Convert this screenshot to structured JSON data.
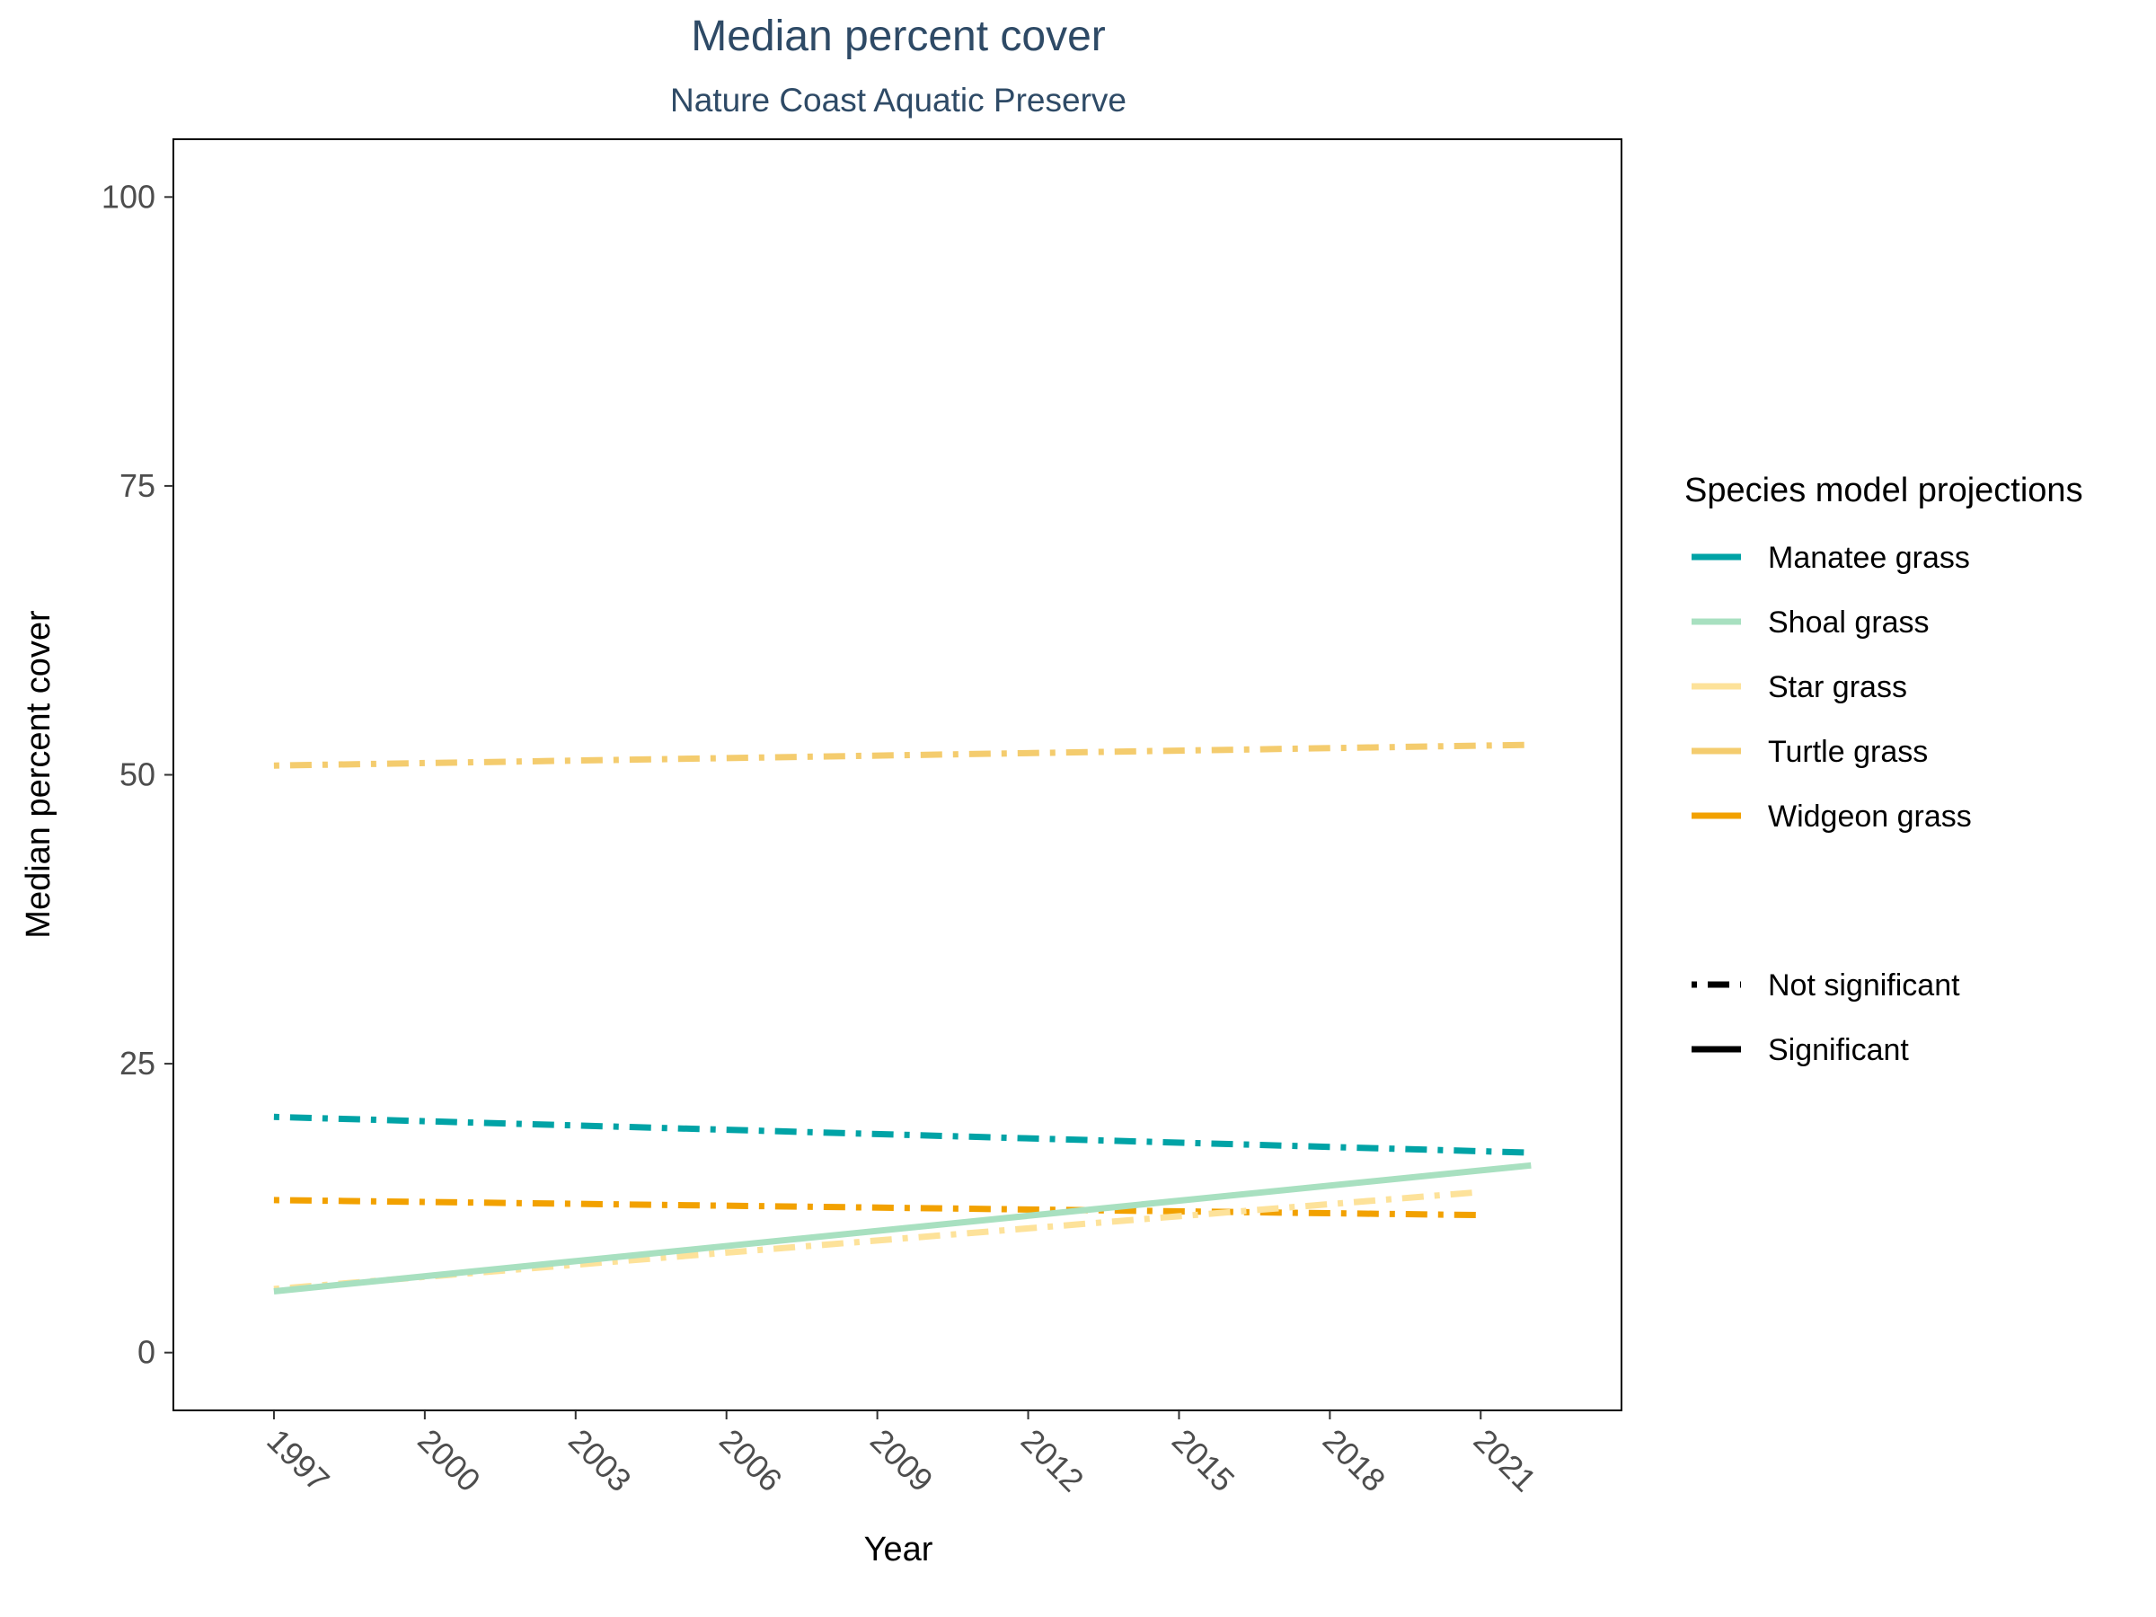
{
  "chart_data": {
    "type": "line",
    "title": "Median percent cover",
    "subtitle": "Nature Coast Aquatic Preserve",
    "xlabel": "Year",
    "ylabel": "Median percent cover",
    "xlim": [
      1995,
      2023.8
    ],
    "ylim": [
      -5,
      105
    ],
    "x_ticks": [
      1997,
      2000,
      2003,
      2006,
      2009,
      2012,
      2015,
      2018,
      2021
    ],
    "y_ticks": [
      0,
      25,
      50,
      75,
      100
    ],
    "grid": false,
    "legend_position": "right",
    "legend_title": "Species model projections",
    "line_type_legend": [
      {
        "label": "Not significant",
        "style": "dotdash"
      },
      {
        "label": "Significant",
        "style": "solid"
      }
    ],
    "series": [
      {
        "name": "Manatee grass",
        "color": "#00a3a6",
        "significant": false,
        "x": [
          1997,
          2022
        ],
        "y": [
          20.4,
          17.3
        ]
      },
      {
        "name": "Shoal grass",
        "color": "#a8e0c0",
        "significant": true,
        "x": [
          1997,
          2022
        ],
        "y": [
          5.3,
          16.2
        ]
      },
      {
        "name": "Star grass",
        "color": "#fde29a",
        "significant": false,
        "x": [
          1997,
          2021
        ],
        "y": [
          5.5,
          13.9
        ]
      },
      {
        "name": "Turtle grass",
        "color": "#f4cc6e",
        "significant": false,
        "x": [
          1997,
          2022
        ],
        "y": [
          50.8,
          52.6
        ]
      },
      {
        "name": "Widgeon grass",
        "color": "#f2a100",
        "significant": false,
        "x": [
          1997,
          2021
        ],
        "y": [
          13.2,
          11.9
        ]
      }
    ]
  }
}
